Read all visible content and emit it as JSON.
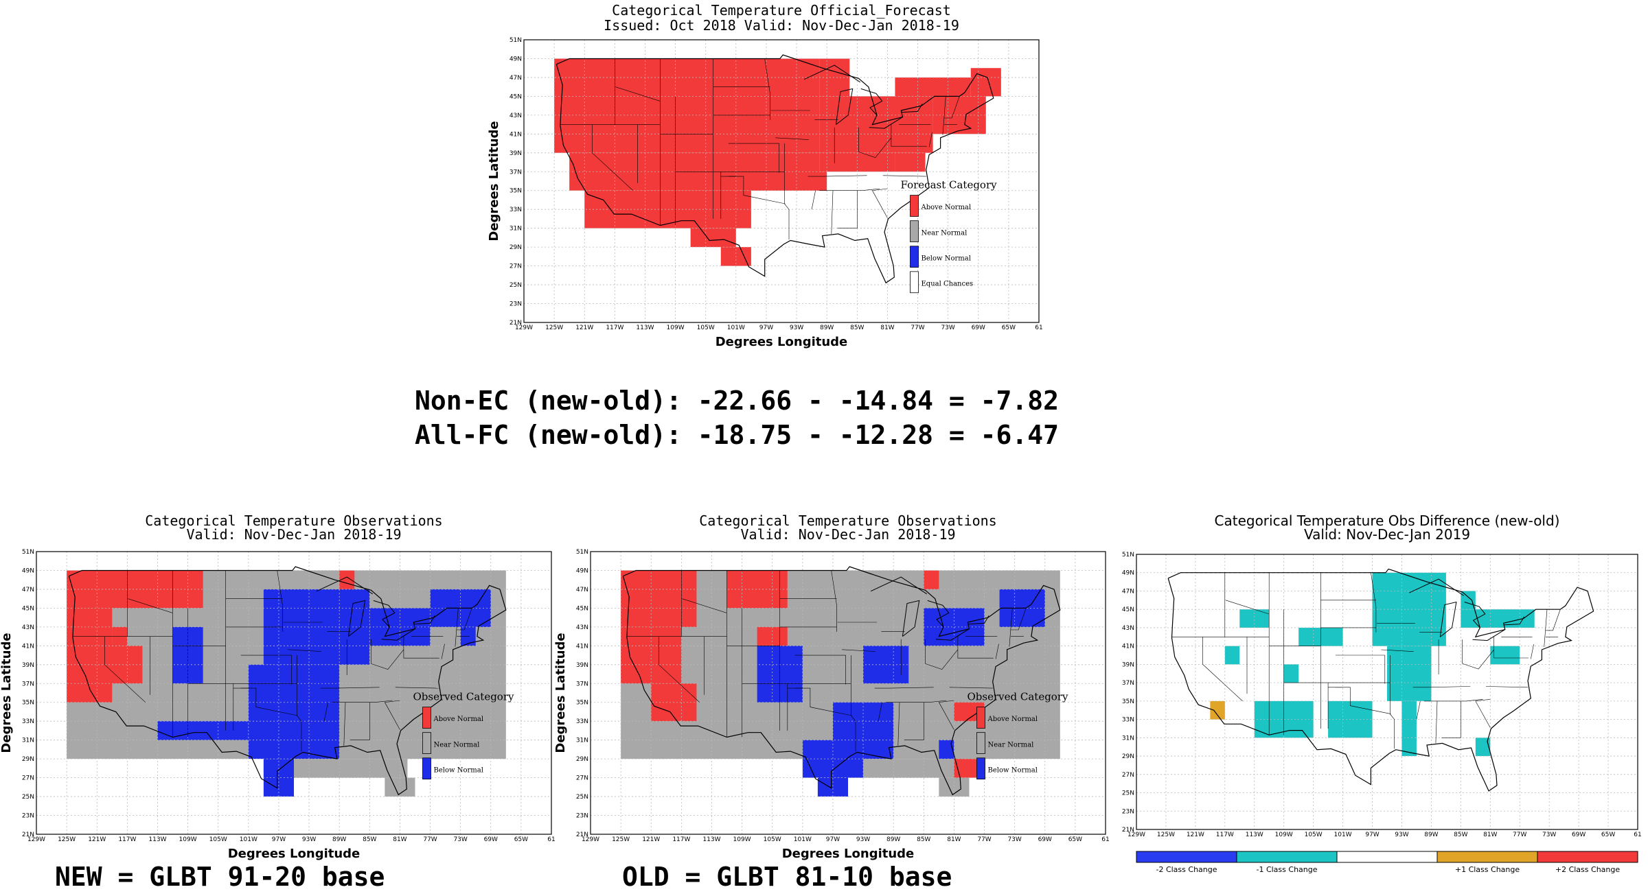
{
  "colors": {
    "above": "#f23a3a",
    "near": "#a8a8a8",
    "below": "#1f2de8",
    "equal": "#ffffff",
    "minus2": "#2a3cf0",
    "minus1": "#1cc4c4",
    "plus1": "#e0a428",
    "plus2": "#f23a3a",
    "grid": "#b9b9b9"
  },
  "axes": {
    "lat_ticks": [
      "51N",
      "49N",
      "47N",
      "45N",
      "43N",
      "41N",
      "39N",
      "37N",
      "35N",
      "33N",
      "31N",
      "29N",
      "27N",
      "25N",
      "23N",
      "21N"
    ],
    "lon_ticks": [
      "129W",
      "125W",
      "121W",
      "117W",
      "113W",
      "109W",
      "105W",
      "101W",
      "97W",
      "93W",
      "89W",
      "85W",
      "81W",
      "77W",
      "73W",
      "69W",
      "65W",
      "61"
    ],
    "xlabel": "Degrees Longitude",
    "ylabel": "Degrees Latitude"
  },
  "stats": {
    "line1": "Non-EC (new-old): -22.66 - -14.84 = -7.82",
    "line2": "All-FC (new-old): -18.75 - -12.28 = -6.47"
  },
  "captions": {
    "new": "NEW = GLBT 91-20 base",
    "old": "OLD = GLBT 81-10 base"
  },
  "chart_data": [
    {
      "type": "heatmap",
      "id": "forecast",
      "title": "Categorical Temperature Official_Forecast",
      "subtitle": "Issued: Oct 2018 Valid: Nov-Dec-Jan 2018-19",
      "xlabel": "Degrees Longitude",
      "ylabel": "Degrees Latitude",
      "xlim": [
        -129,
        -61
      ],
      "ylim": [
        21,
        51
      ],
      "legend_title": "Forecast Category",
      "legend": [
        "Above Normal",
        "Near Normal",
        "Below Normal",
        "Equal Chances"
      ],
      "legend_keys": [
        "above",
        "near",
        "below",
        "equal"
      ],
      "legend_placement": "lower-right",
      "regions": [
        {
          "category": "above",
          "lon": [
            -125,
            -90
          ],
          "lat": [
            39,
            49
          ]
        },
        {
          "category": "above",
          "lon": [
            -123,
            -90
          ],
          "lat": [
            35,
            39
          ]
        },
        {
          "category": "above",
          "lon": [
            -121,
            -99
          ],
          "lat": [
            31,
            35
          ]
        },
        {
          "category": "above",
          "lon": [
            -107,
            -101
          ],
          "lat": [
            29,
            31
          ]
        },
        {
          "category": "above",
          "lon": [
            -103,
            -99
          ],
          "lat": [
            27,
            29
          ]
        },
        {
          "category": "above",
          "lon": [
            -99,
            -89
          ],
          "lat": [
            35,
            37
          ]
        },
        {
          "category": "above",
          "lon": [
            -90,
            -75
          ],
          "lat": [
            39,
            45
          ]
        },
        {
          "category": "above",
          "lon": [
            -90,
            -80
          ],
          "lat": [
            37,
            39
          ]
        },
        {
          "category": "above",
          "lon": [
            -80,
            -76
          ],
          "lat": [
            37,
            39
          ]
        },
        {
          "category": "above",
          "lon": [
            -80,
            -70
          ],
          "lat": [
            45,
            47
          ]
        },
        {
          "category": "above",
          "lon": [
            -75,
            -68
          ],
          "lat": [
            41,
            45
          ]
        },
        {
          "category": "above",
          "lon": [
            -70,
            -66
          ],
          "lat": [
            45,
            48
          ]
        },
        {
          "category": "above",
          "lon": [
            -90,
            -86
          ],
          "lat": [
            45,
            49
          ]
        }
      ]
    },
    {
      "type": "heatmap",
      "id": "obs_new",
      "title": "Categorical Temperature Observations",
      "subtitle": "Valid: Nov-Dec-Jan 2018-19",
      "xlabel": "Degrees Longitude",
      "ylabel": "Degrees Latitude",
      "xlim": [
        -129,
        -61
      ],
      "ylim": [
        21,
        51
      ],
      "legend_title": "Observed Category",
      "legend": [
        "Above Normal",
        "Near Normal",
        "Below Normal"
      ],
      "legend_keys": [
        "above",
        "near",
        "below"
      ],
      "legend_placement": "lower-right",
      "regions": [
        {
          "category": "near",
          "lon": [
            -125,
            -67
          ],
          "lat": [
            29,
            49
          ]
        },
        {
          "category": "near",
          "lon": [
            -99,
            -80
          ],
          "lat": [
            27,
            29
          ]
        },
        {
          "category": "near",
          "lon": [
            -83,
            -79
          ],
          "lat": [
            25,
            27
          ]
        },
        {
          "category": "above",
          "lon": [
            -125,
            -107
          ],
          "lat": [
            45,
            49
          ]
        },
        {
          "category": "above",
          "lon": [
            -125,
            -119
          ],
          "lat": [
            35,
            45
          ]
        },
        {
          "category": "above",
          "lon": [
            -121,
            -115
          ],
          "lat": [
            37,
            41
          ]
        },
        {
          "category": "above",
          "lon": [
            -119,
            -117
          ],
          "lat": [
            41,
            43
          ]
        },
        {
          "category": "above",
          "lon": [
            -89,
            -87
          ],
          "lat": [
            47,
            49
          ]
        },
        {
          "category": "above",
          "lon": [
            -79,
            -77
          ],
          "lat": [
            43,
            45
          ]
        },
        {
          "category": "below",
          "lon": [
            -99,
            -85
          ],
          "lat": [
            39,
            47
          ]
        },
        {
          "category": "below",
          "lon": [
            -101,
            -89
          ],
          "lat": [
            29,
            39
          ]
        },
        {
          "category": "below",
          "lon": [
            -113,
            -101
          ],
          "lat": [
            31,
            33
          ]
        },
        {
          "category": "below",
          "lon": [
            -111,
            -107
          ],
          "lat": [
            37,
            43
          ]
        },
        {
          "category": "below",
          "lon": [
            -99,
            -95
          ],
          "lat": [
            25,
            29
          ]
        },
        {
          "category": "below",
          "lon": [
            -85,
            -77
          ],
          "lat": [
            41,
            45
          ]
        },
        {
          "category": "below",
          "lon": [
            -77,
            -69
          ],
          "lat": [
            43,
            47
          ]
        },
        {
          "category": "below",
          "lon": [
            -73,
            -71
          ],
          "lat": [
            41,
            43
          ]
        }
      ]
    },
    {
      "type": "heatmap",
      "id": "obs_old",
      "title": "Categorical Temperature Observations",
      "subtitle": "Valid: Nov-Dec-Jan 2018-19",
      "xlabel": "Degrees Longitude",
      "ylabel": "Degrees Latitude",
      "xlim": [
        -129,
        -61
      ],
      "ylim": [
        21,
        51
      ],
      "legend_title": "Observed Category",
      "legend": [
        "Above Normal",
        "Near Normal",
        "Below Normal"
      ],
      "legend_keys": [
        "above",
        "near",
        "below"
      ],
      "legend_placement": "lower-right",
      "regions": [
        {
          "category": "near",
          "lon": [
            -125,
            -67
          ],
          "lat": [
            29,
            49
          ]
        },
        {
          "category": "near",
          "lon": [
            -99,
            -80
          ],
          "lat": [
            27,
            29
          ]
        },
        {
          "category": "near",
          "lon": [
            -83,
            -79
          ],
          "lat": [
            25,
            27
          ]
        },
        {
          "category": "above",
          "lon": [
            -125,
            -115
          ],
          "lat": [
            43,
            49
          ]
        },
        {
          "category": "above",
          "lon": [
            -125,
            -117
          ],
          "lat": [
            37,
            43
          ]
        },
        {
          "category": "above",
          "lon": [
            -121,
            -115
          ],
          "lat": [
            33,
            37
          ]
        },
        {
          "category": "above",
          "lon": [
            -111,
            -103
          ],
          "lat": [
            45,
            49
          ]
        },
        {
          "category": "above",
          "lon": [
            -107,
            -103
          ],
          "lat": [
            41,
            43
          ]
        },
        {
          "category": "above",
          "lon": [
            -85,
            -83
          ],
          "lat": [
            47,
            49
          ]
        },
        {
          "category": "above",
          "lon": [
            -81,
            -77
          ],
          "lat": [
            33,
            35
          ]
        },
        {
          "category": "above",
          "lon": [
            -81,
            -77
          ],
          "lat": [
            27,
            29
          ]
        },
        {
          "category": "below",
          "lon": [
            -97,
            -89
          ],
          "lat": [
            29,
            35
          ]
        },
        {
          "category": "below",
          "lon": [
            -101,
            -93
          ],
          "lat": [
            27,
            31
          ]
        },
        {
          "category": "below",
          "lon": [
            -99,
            -95
          ],
          "lat": [
            25,
            27
          ]
        },
        {
          "category": "below",
          "lon": [
            -107,
            -101
          ],
          "lat": [
            35,
            41
          ]
        },
        {
          "category": "below",
          "lon": [
            -93,
            -87
          ],
          "lat": [
            37,
            41
          ]
        },
        {
          "category": "below",
          "lon": [
            -85,
            -77
          ],
          "lat": [
            41,
            45
          ]
        },
        {
          "category": "below",
          "lon": [
            -75,
            -69
          ],
          "lat": [
            43,
            47
          ]
        },
        {
          "category": "below",
          "lon": [
            -83,
            -81
          ],
          "lat": [
            29,
            31
          ]
        }
      ]
    },
    {
      "type": "heatmap",
      "id": "difference",
      "title": "Categorical Temperature Obs Difference (new-old)",
      "subtitle": "Valid: Nov-Dec-Jan 2019",
      "xlim": [
        -129,
        -61
      ],
      "ylim": [
        21,
        51
      ],
      "colorbar": [
        "-2 Class Change",
        "-1 Class Change",
        "",
        "+1 Class Change",
        "+2 Class Change"
      ],
      "colorbar_keys": [
        "minus2",
        "minus1",
        "equal",
        "plus1",
        "plus2"
      ],
      "regions": [
        {
          "category": "minus1",
          "lon": [
            -97,
            -87
          ],
          "lat": [
            41,
            49
          ]
        },
        {
          "category": "minus1",
          "lon": [
            -95,
            -89
          ],
          "lat": [
            35,
            41
          ]
        },
        {
          "category": "minus1",
          "lon": [
            -93,
            -91
          ],
          "lat": [
            29,
            35
          ]
        },
        {
          "category": "minus1",
          "lon": [
            -103,
            -97
          ],
          "lat": [
            31,
            35
          ]
        },
        {
          "category": "minus1",
          "lon": [
            -113,
            -105
          ],
          "lat": [
            31,
            35
          ]
        },
        {
          "category": "minus1",
          "lon": [
            -107,
            -101
          ],
          "lat": [
            41,
            43
          ]
        },
        {
          "category": "minus1",
          "lon": [
            -85,
            -75
          ],
          "lat": [
            43,
            45
          ]
        },
        {
          "category": "minus1",
          "lon": [
            -81,
            -77
          ],
          "lat": [
            39,
            41
          ]
        },
        {
          "category": "minus1",
          "lon": [
            -83,
            -81
          ],
          "lat": [
            29,
            31
          ]
        },
        {
          "category": "minus1",
          "lon": [
            -115,
            -111
          ],
          "lat": [
            43,
            45
          ]
        },
        {
          "category": "minus1",
          "lon": [
            -117,
            -115
          ],
          "lat": [
            39,
            41
          ]
        },
        {
          "category": "minus1",
          "lon": [
            -109,
            -107
          ],
          "lat": [
            37,
            39
          ]
        },
        {
          "category": "minus1",
          "lon": [
            -85,
            -83
          ],
          "lat": [
            45,
            47
          ]
        },
        {
          "category": "plus1",
          "lon": [
            -119,
            -117
          ],
          "lat": [
            33,
            35
          ]
        }
      ]
    }
  ]
}
